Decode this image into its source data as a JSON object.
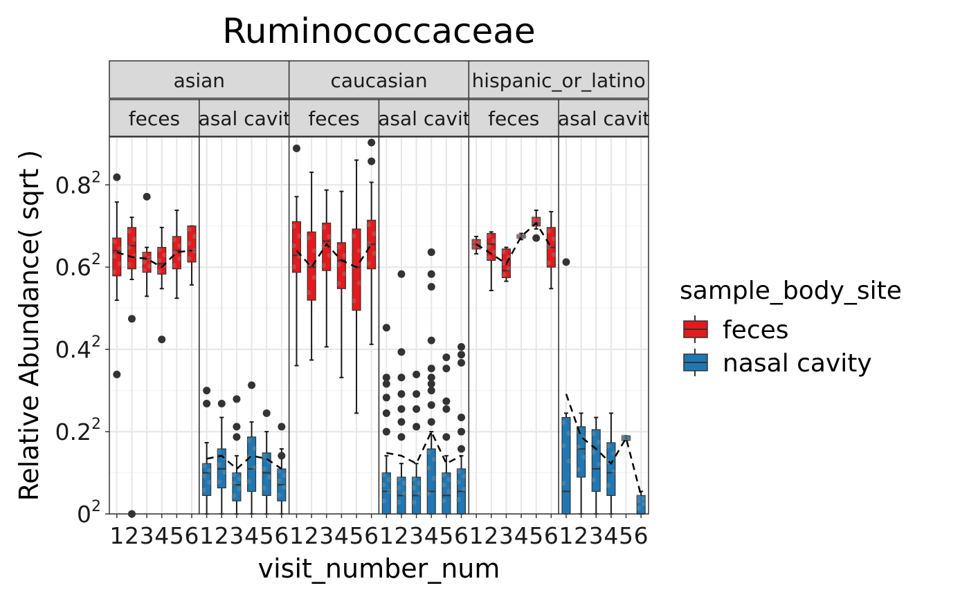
{
  "chart_data": {
    "type": "box",
    "title": "Ruminococcaceae",
    "xlabel": "visit_number_num",
    "ylabel": "Relative Abundance( sqrt )",
    "x_ticks": [
      "1",
      "2",
      "3",
      "4",
      "5",
      "6"
    ],
    "y_scale": "sqrt",
    "y_ticks": [
      {
        "value": 0.0,
        "base": "0"
      },
      {
        "value": 0.2,
        "base": "0.2"
      },
      {
        "value": 0.4,
        "base": "0.4"
      },
      {
        "value": 0.6,
        "base": "0.6"
      },
      {
        "value": 0.8,
        "base": "0.8"
      }
    ],
    "y_tick_exponent": "2",
    "ylim": [
      0,
      0.84
    ],
    "grid": true,
    "legend": {
      "title": "sample_body_site",
      "position": "right",
      "entries": [
        {
          "label": "feces",
          "color": "#E41A1C"
        },
        {
          "label": "nasal cavity",
          "color": "#1F78B4"
        }
      ]
    },
    "colors": {
      "feces": "#E41A1C",
      "nasal cavity": "#1F78B4",
      "strip_bg": "#D9D9D9",
      "mean_line": "#000000"
    },
    "facets": [
      {
        "group": "asian",
        "site": "feces",
        "strip_label": "feces",
        "boxes": [
          {
            "x": 1,
            "q1": 0.335,
            "median": 0.41,
            "q3": 0.45,
            "lo": 0.27,
            "hi": 0.575
          },
          {
            "x": 2,
            "q1": 0.355,
            "median": 0.425,
            "q3": 0.485,
            "lo": 0.325,
            "hi": 0.52
          },
          {
            "x": 3,
            "q1": 0.345,
            "median": 0.385,
            "q3": 0.405,
            "lo": 0.28,
            "hi": 0.42
          },
          {
            "x": 4,
            "q1": 0.34,
            "median": 0.37,
            "q3": 0.42,
            "lo": 0.3,
            "hi": 0.485
          },
          {
            "x": 5,
            "q1": 0.355,
            "median": 0.41,
            "q3": 0.455,
            "lo": 0.275,
            "hi": 0.545
          },
          {
            "x": 6,
            "q1": 0.375,
            "median": 0.41,
            "q3": 0.49,
            "lo": 0.31,
            "hi": 0.49
          }
        ],
        "outliers": [
          [
            1,
            0.67
          ],
          [
            1,
            0.115
          ],
          [
            2,
            0.225
          ],
          [
            2,
            0.0
          ],
          [
            3,
            0.595
          ],
          [
            4,
            0.18
          ]
        ],
        "mean_line": [
          0.405,
          0.39,
          0.385,
          0.36,
          0.405,
          0.41
        ]
      },
      {
        "group": "asian",
        "site": "nasal cavity",
        "strip_label": "nasal cavity",
        "boxes": [
          {
            "x": 1,
            "q1": 0.002,
            "median": 0.01,
            "q3": 0.015,
            "lo": 0.0,
            "hi": 0.03
          },
          {
            "x": 2,
            "q1": 0.004,
            "median": 0.012,
            "q3": 0.025,
            "lo": 0.0,
            "hi": 0.055
          },
          {
            "x": 3,
            "q1": 0.001,
            "median": 0.005,
            "q3": 0.01,
            "lo": 0.0,
            "hi": 0.02
          },
          {
            "x": 4,
            "q1": 0.003,
            "median": 0.012,
            "q3": 0.035,
            "lo": 0.0,
            "hi": 0.05
          },
          {
            "x": 5,
            "q1": 0.002,
            "median": 0.01,
            "q3": 0.022,
            "lo": 0.0,
            "hi": 0.04
          },
          {
            "x": 6,
            "q1": 0.001,
            "median": 0.005,
            "q3": 0.012,
            "lo": 0.0,
            "hi": 0.025
          }
        ],
        "outliers": [
          [
            1,
            0.09
          ],
          [
            1,
            0.072
          ],
          [
            2,
            0.072
          ],
          [
            3,
            0.078
          ],
          [
            3,
            0.045
          ],
          [
            3,
            0.035
          ],
          [
            4,
            0.098
          ],
          [
            5,
            0.06
          ],
          [
            6,
            0.045
          ],
          [
            6,
            0.02
          ]
        ],
        "mean_line": [
          0.018,
          0.02,
          0.012,
          0.02,
          0.018,
          0.012
        ]
      },
      {
        "group": "caucasian",
        "site": "feces",
        "strip_label": "feces",
        "boxes": [
          {
            "x": 1,
            "q1": 0.345,
            "median": 0.395,
            "q3": 0.505,
            "lo": 0.13,
            "hi": 0.595
          },
          {
            "x": 2,
            "q1": 0.27,
            "median": 0.36,
            "q3": 0.47,
            "lo": 0.14,
            "hi": 0.69
          },
          {
            "x": 3,
            "q1": 0.35,
            "median": 0.44,
            "q3": 0.5,
            "lo": 0.165,
            "hi": 0.62
          },
          {
            "x": 4,
            "q1": 0.3,
            "median": 0.38,
            "q3": 0.435,
            "lo": 0.11,
            "hi": 0.615
          },
          {
            "x": 5,
            "q1": 0.245,
            "median": 0.36,
            "q3": 0.48,
            "lo": 0.06,
            "hi": 0.74
          },
          {
            "x": 6,
            "q1": 0.355,
            "median": 0.43,
            "q3": 0.51,
            "lo": 0.17,
            "hi": 0.65
          }
        ],
        "outliers": [
          [
            1,
            0.79
          ],
          [
            6,
            0.815
          ],
          [
            6,
            0.735
          ]
        ],
        "mean_line": [
          0.41,
          0.36,
          0.43,
          0.38,
          0.36,
          0.43
        ]
      },
      {
        "group": "caucasian",
        "site": "nasal cavity",
        "strip_label": "nasal cavity",
        "boxes": [
          {
            "x": 1,
            "q1": 0.0,
            "median": 0.003,
            "q3": 0.01,
            "lo": 0.0,
            "hi": 0.02
          },
          {
            "x": 2,
            "q1": 0.0,
            "median": 0.002,
            "q3": 0.008,
            "lo": 0.0,
            "hi": 0.015
          },
          {
            "x": 3,
            "q1": 0.0,
            "median": 0.002,
            "q3": 0.008,
            "lo": 0.0,
            "hi": 0.015
          },
          {
            "x": 4,
            "q1": 0.0,
            "median": 0.003,
            "q3": 0.025,
            "lo": 0.0,
            "hi": 0.04
          },
          {
            "x": 5,
            "q1": 0.0,
            "median": 0.002,
            "q3": 0.01,
            "lo": 0.0,
            "hi": 0.02
          },
          {
            "x": 6,
            "q1": 0.0,
            "median": 0.003,
            "q3": 0.012,
            "lo": 0.0,
            "hi": 0.02
          }
        ],
        "outliers": [
          [
            1,
            0.205
          ],
          [
            1,
            0.11
          ],
          [
            1,
            0.1
          ],
          [
            1,
            0.08
          ],
          [
            1,
            0.06
          ],
          [
            1,
            0.04
          ],
          [
            2,
            0.34
          ],
          [
            2,
            0.155
          ],
          [
            2,
            0.11
          ],
          [
            2,
            0.085
          ],
          [
            2,
            0.065
          ],
          [
            2,
            0.05
          ],
          [
            2,
            0.035
          ],
          [
            3,
            0.115
          ],
          [
            3,
            0.085
          ],
          [
            3,
            0.065
          ],
          [
            3,
            0.045
          ],
          [
            4,
            0.405
          ],
          [
            4,
            0.34
          ],
          [
            4,
            0.305
          ],
          [
            4,
            0.178
          ],
          [
            4,
            0.125
          ],
          [
            4,
            0.11
          ],
          [
            4,
            0.1
          ],
          [
            4,
            0.09
          ],
          [
            4,
            0.07
          ],
          [
            4,
            0.05
          ],
          [
            5,
            0.145
          ],
          [
            5,
            0.125
          ],
          [
            5,
            0.075
          ],
          [
            5,
            0.065
          ],
          [
            5,
            0.035
          ],
          [
            6,
            0.165
          ],
          [
            6,
            0.15
          ],
          [
            6,
            0.135
          ],
          [
            6,
            0.055
          ],
          [
            6,
            0.04
          ],
          [
            6,
            0.025
          ]
        ],
        "mean_line": [
          0.022,
          0.02,
          0.015,
          0.04,
          0.015,
          0.02
        ]
      },
      {
        "group": "hispanic_or_latino",
        "site": "feces",
        "strip_label": "feces",
        "boxes": [
          {
            "x": 1,
            "q1": 0.415,
            "median": 0.43,
            "q3": 0.445,
            "lo": 0.4,
            "hi": 0.455
          },
          {
            "x": 2,
            "q1": 0.38,
            "median": 0.43,
            "q3": 0.465,
            "lo": 0.295,
            "hi": 0.47
          },
          {
            "x": 3,
            "q1": 0.33,
            "median": 0.35,
            "q3": 0.415,
            "lo": 0.32,
            "hi": 0.42
          },
          {
            "x": 4,
            "q1": 0.45,
            "median": 0.455,
            "q3": 0.46,
            "lo": 0.445,
            "hi": 0.465
          },
          {
            "x": 5,
            "q1": 0.49,
            "median": 0.5,
            "q3": 0.52,
            "lo": 0.48,
            "hi": 0.545
          },
          {
            "x": 6,
            "q1": 0.36,
            "median": 0.42,
            "q3": 0.485,
            "lo": 0.3,
            "hi": 0.54
          }
        ],
        "outliers": [
          [
            5,
            0.45
          ]
        ],
        "mean_line": [
          0.43,
          0.4,
          0.37,
          0.455,
          0.5,
          0.42
        ]
      },
      {
        "group": "hispanic_or_latino",
        "site": "nasal cavity",
        "strip_label": "nasal cavity",
        "boxes": [
          {
            "x": 1,
            "q1": 0.0,
            "median": 0.003,
            "q3": 0.055,
            "lo": 0.0,
            "hi": 0.06
          },
          {
            "x": 2,
            "q1": 0.008,
            "median": 0.025,
            "q3": 0.045,
            "lo": 0.0,
            "hi": 0.06
          },
          {
            "x": 3,
            "q1": 0.003,
            "median": 0.012,
            "q3": 0.042,
            "lo": 0.0,
            "hi": 0.055
          },
          {
            "x": 4,
            "q1": 0.002,
            "median": 0.01,
            "q3": 0.03,
            "lo": 0.0,
            "hi": 0.06
          },
          {
            "x": 5,
            "q1": 0.032,
            "median": 0.034,
            "q3": 0.036,
            "lo": 0.032,
            "hi": 0.036
          },
          {
            "x": 6,
            "q1": 0.0,
            "median": 0.0,
            "q3": 0.002,
            "lo": 0.0,
            "hi": 0.003
          }
        ],
        "outliers": [
          [
            1,
            0.375
          ]
        ],
        "mean_line": [
          0.085,
          0.035,
          0.025,
          0.015,
          0.034,
          0.002
        ]
      }
    ],
    "groups": [
      {
        "label": "asian"
      },
      {
        "label": "caucasian"
      },
      {
        "label": "hispanic_or_latino"
      }
    ]
  }
}
